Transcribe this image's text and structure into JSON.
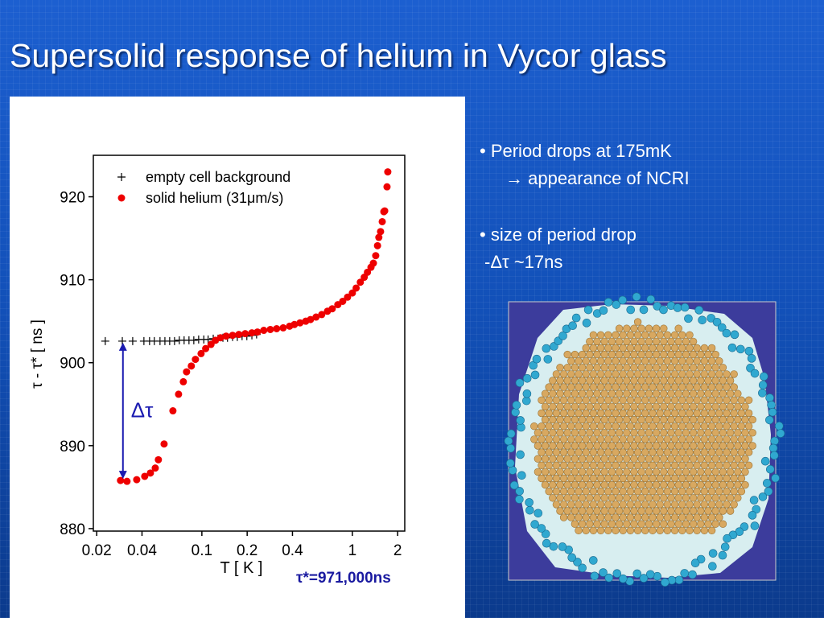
{
  "slide": {
    "title": "Supersolid response of helium in Vycor glass",
    "bullets": [
      "• Period drops at 175mK",
      "→ appearance of NCRI",
      "• size of period drop",
      "-Δτ ~17ns"
    ]
  },
  "chart_data": {
    "type": "scatter",
    "xlabel": "T [ K ]",
    "ylabel": "τ - τ* [ ns ]",
    "xscale": "log",
    "grid": false,
    "legend": "upper left",
    "xlim": [
      0.019,
      2.23
    ],
    "xticks": [
      0.02,
      0.04,
      0.1,
      0.2,
      0.4,
      1,
      2
    ],
    "ylim": [
      879.7,
      925
    ],
    "yticks": [
      880,
      890,
      900,
      910,
      920
    ],
    "delta_label": "Δτ",
    "note": "τ*=971,000ns",
    "series": [
      {
        "name": "empty cell background",
        "color": "#000000",
        "marker": "plus",
        "x": [
          0.0228,
          0.0296,
          0.0347,
          0.0412,
          0.0449,
          0.0483,
          0.0527,
          0.0568,
          0.0611,
          0.0658,
          0.0708,
          0.0762,
          0.0821,
          0.0884,
          0.0952,
          0.103,
          0.11,
          0.119,
          0.128,
          0.138,
          0.148,
          0.16,
          0.172,
          0.185,
          0.199,
          0.215,
          0.231
        ],
        "values": [
          902.6,
          902.6,
          902.6,
          902.6,
          902.6,
          902.6,
          902.6,
          902.6,
          902.6,
          902.6,
          902.7,
          902.7,
          902.7,
          902.7,
          902.8,
          902.8,
          902.8,
          902.9,
          902.9,
          903.0,
          903.0,
          903.1,
          903.1,
          903.2,
          903.2,
          903.3,
          903.4
        ]
      },
      {
        "name": "solid helium (31μm/s)",
        "color": "#ee0000",
        "marker": "circle",
        "x": [
          0.0288,
          0.0318,
          0.0369,
          0.0417,
          0.0455,
          0.049,
          0.0514,
          0.0561,
          0.0642,
          0.07,
          0.0753,
          0.0791,
          0.0851,
          0.0906,
          0.0988,
          0.106,
          0.115,
          0.123,
          0.133,
          0.145,
          0.16,
          0.176,
          0.194,
          0.215,
          0.234,
          0.258,
          0.285,
          0.314,
          0.347,
          0.383,
          0.412,
          0.449,
          0.49,
          0.527,
          0.574,
          0.626,
          0.683,
          0.735,
          0.801,
          0.863,
          0.929,
          1.0,
          1.06,
          1.13,
          1.2,
          1.26,
          1.33,
          1.38,
          1.43,
          1.47,
          1.5,
          1.54,
          1.58,
          1.62,
          1.64,
          1.7,
          1.72
        ],
        "values": [
          885.8,
          885.7,
          885.9,
          886.3,
          886.7,
          887.3,
          888.3,
          890.2,
          894.2,
          896.2,
          897.7,
          898.9,
          899.6,
          900.4,
          901.1,
          901.7,
          902.2,
          902.7,
          903.0,
          903.2,
          903.3,
          903.4,
          903.5,
          903.6,
          903.7,
          903.9,
          904.0,
          904.1,
          904.2,
          904.4,
          904.6,
          904.8,
          905.0,
          905.2,
          905.5,
          905.8,
          906.2,
          906.5,
          907.0,
          907.4,
          907.9,
          908.4,
          909.0,
          909.7,
          910.3,
          910.9,
          911.5,
          912.0,
          912.9,
          914.1,
          915.1,
          915.8,
          917.0,
          918.2,
          918.3,
          921.2,
          923.0
        ]
      }
    ]
  }
}
